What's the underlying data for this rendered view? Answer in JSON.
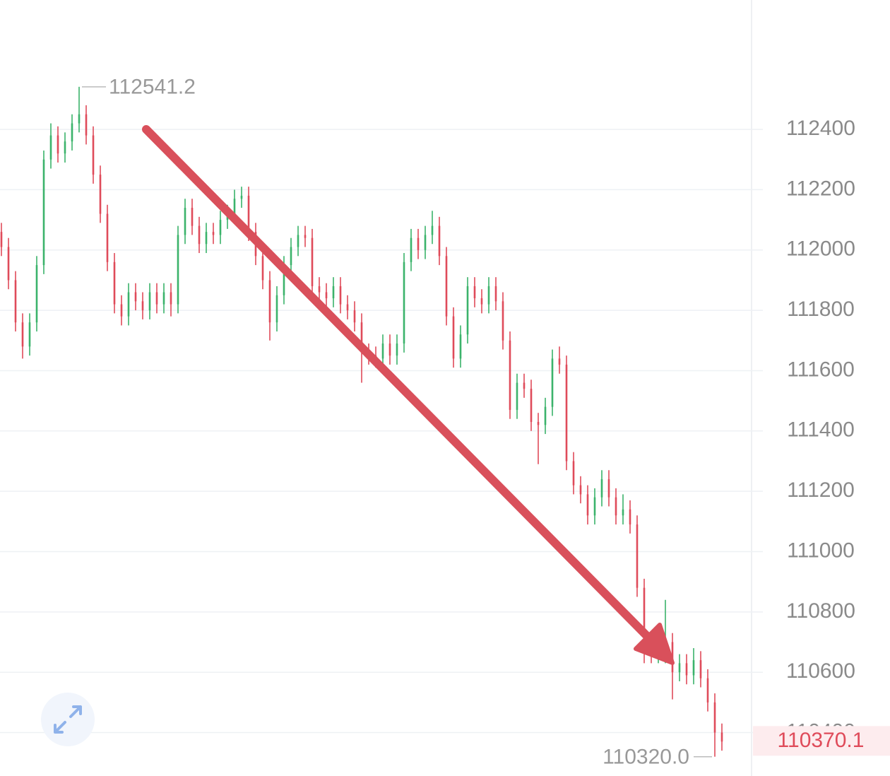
{
  "chart_data": {
    "type": "ohlc",
    "ylim": [
      110256,
      112829
    ],
    "yticks": [
      110400,
      110600,
      110800,
      111000,
      111200,
      111400,
      111600,
      111800,
      112000,
      112200,
      112400
    ],
    "grid": true,
    "up_color": "#3bb36b",
    "down_color": "#df4b5a",
    "high_label": "112541.2",
    "low_label": "110320.0",
    "last_label": "110370.1",
    "ohlc": [
      [
        112060,
        112090,
        111980,
        112010
      ],
      [
        112010,
        112040,
        111870,
        111900
      ],
      [
        111900,
        111930,
        111730,
        111760
      ],
      [
        111760,
        111790,
        111640,
        111680
      ],
      [
        111680,
        111790,
        111650,
        111760
      ],
      [
        111760,
        111980,
        111730,
        111950
      ],
      [
        111950,
        112330,
        111920,
        112300
      ],
      [
        112300,
        112420,
        112270,
        112380
      ],
      [
        112380,
        112410,
        112290,
        112320
      ],
      [
        112320,
        112390,
        112290,
        112360
      ],
      [
        112360,
        112450,
        112330,
        112420
      ],
      [
        112420,
        112541.2,
        112390,
        112450
      ],
      [
        112450,
        112480,
        112350,
        112380
      ],
      [
        112380,
        112410,
        112220,
        112250
      ],
      [
        112250,
        112280,
        112090,
        112120
      ],
      [
        112120,
        112150,
        111930,
        111960
      ],
      [
        111960,
        111990,
        111790,
        111820
      ],
      [
        111820,
        111850,
        111750,
        111780
      ],
      [
        111780,
        111890,
        111750,
        111860
      ],
      [
        111860,
        111890,
        111800,
        111830
      ],
      [
        111830,
        111860,
        111770,
        111800
      ],
      [
        111800,
        111890,
        111770,
        111860
      ],
      [
        111860,
        111890,
        111790,
        111820
      ],
      [
        111820,
        111890,
        111790,
        111860
      ],
      [
        111860,
        111890,
        111780,
        111820
      ],
      [
        111820,
        112080,
        111790,
        112050
      ],
      [
        112050,
        112170,
        112020,
        112140
      ],
      [
        112140,
        112170,
        112050,
        112080
      ],
      [
        112080,
        112110,
        111990,
        112020
      ],
      [
        112020,
        112090,
        111990,
        112060
      ],
      [
        112060,
        112090,
        112020,
        112050
      ],
      [
        112050,
        112130,
        112020,
        112100
      ],
      [
        112100,
        112150,
        112070,
        112120
      ],
      [
        112120,
        112200,
        112090,
        112170
      ],
      [
        112170,
        112210,
        112140,
        112180
      ],
      [
        112180,
        112210,
        112030,
        112060
      ],
      [
        112060,
        112090,
        111950,
        111980
      ],
      [
        111980,
        112010,
        111870,
        111900
      ],
      [
        111900,
        111930,
        111700,
        111760
      ],
      [
        111760,
        111880,
        111730,
        111850
      ],
      [
        111850,
        111980,
        111820,
        111950
      ],
      [
        111950,
        112040,
        111920,
        112010
      ],
      [
        112010,
        112080,
        111980,
        112050
      ],
      [
        112050,
        112080,
        112010,
        112040
      ],
      [
        112040,
        112070,
        111850,
        111880
      ],
      [
        111880,
        111910,
        111830,
        111860
      ],
      [
        111860,
        111890,
        111810,
        111840
      ],
      [
        111840,
        111910,
        111810,
        111880
      ],
      [
        111880,
        111910,
        111790,
        111820
      ],
      [
        111820,
        111850,
        111770,
        111800
      ],
      [
        111800,
        111830,
        111730,
        111760
      ],
      [
        111760,
        111790,
        111560,
        111660
      ],
      [
        111660,
        111690,
        111620,
        111650
      ],
      [
        111650,
        111680,
        111610,
        111640
      ],
      [
        111640,
        111720,
        111610,
        111690
      ],
      [
        111690,
        111720,
        111620,
        111650
      ],
      [
        111650,
        111720,
        111620,
        111690
      ],
      [
        111690,
        111990,
        111660,
        111960
      ],
      [
        111960,
        112070,
        111930,
        112040
      ],
      [
        112040,
        112070,
        111970,
        112000
      ],
      [
        112000,
        112080,
        111970,
        112050
      ],
      [
        112050,
        112130,
        112020,
        112080
      ],
      [
        112080,
        112110,
        111950,
        111980
      ],
      [
        111980,
        112010,
        111750,
        111780
      ],
      [
        111780,
        111810,
        111610,
        111640
      ],
      [
        111640,
        111750,
        111610,
        111720
      ],
      [
        111720,
        111910,
        111690,
        111880
      ],
      [
        111880,
        111910,
        111810,
        111840
      ],
      [
        111840,
        111870,
        111790,
        111820
      ],
      [
        111820,
        111910,
        111790,
        111880
      ],
      [
        111880,
        111910,
        111800,
        111830
      ],
      [
        111830,
        111860,
        111670,
        111700
      ],
      [
        111700,
        111730,
        111440,
        111470
      ],
      [
        111470,
        111590,
        111440,
        111560
      ],
      [
        111560,
        111590,
        111510,
        111540
      ],
      [
        111540,
        111570,
        111400,
        111430
      ],
      [
        111430,
        111460,
        111290,
        111420
      ],
      [
        111420,
        111510,
        111390,
        111480
      ],
      [
        111480,
        111670,
        111450,
        111640
      ],
      [
        111640,
        111680,
        111590,
        111620
      ],
      [
        111620,
        111650,
        111270,
        111300
      ],
      [
        111300,
        111330,
        111190,
        111220
      ],
      [
        111220,
        111250,
        111160,
        111190
      ],
      [
        111190,
        111220,
        111090,
        111120
      ],
      [
        111120,
        111210,
        111090,
        111180
      ],
      [
        111180,
        111270,
        111150,
        111240
      ],
      [
        111240,
        111270,
        111150,
        111180
      ],
      [
        111180,
        111210,
        111090,
        111120
      ],
      [
        111120,
        111190,
        111090,
        111140
      ],
      [
        111140,
        111170,
        111060,
        111090
      ],
      [
        111090,
        111120,
        110850,
        110880
      ],
      [
        110880,
        110910,
        110630,
        110690
      ],
      [
        110690,
        110720,
        110630,
        110660
      ],
      [
        110660,
        110690,
        110630,
        110660
      ],
      [
        110660,
        110840,
        110630,
        110700
      ],
      [
        110700,
        110730,
        110510,
        110600
      ],
      [
        110600,
        110660,
        110570,
        110630
      ],
      [
        110630,
        110660,
        110560,
        110590
      ],
      [
        110590,
        110680,
        110560,
        110640
      ],
      [
        110640,
        110670,
        110550,
        110580
      ],
      [
        110580,
        110610,
        110470,
        110500
      ],
      [
        110500,
        110530,
        110320.0,
        110400
      ],
      [
        110400,
        110430,
        110340,
        110370.1
      ]
    ]
  }
}
